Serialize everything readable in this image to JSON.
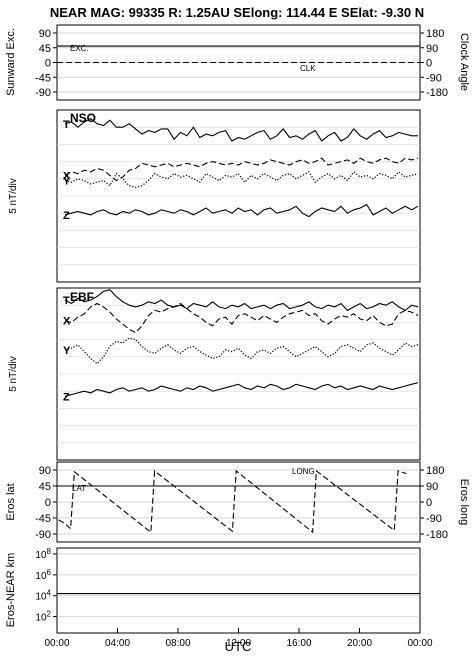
{
  "title": "NEAR MAG: 99335  R: 1.25AU  SElong:  114.44 E  SElat:   -9.30 N",
  "chart_data": [
    {
      "id": "p1",
      "type": "line",
      "ylabel": "Sunward Exc.",
      "ylabel_right": "Clock Angle",
      "ticks_left": [
        "90",
        "45",
        "0",
        "-45",
        "-90"
      ],
      "ticks_right": [
        "180",
        "90",
        "0",
        "-90",
        "-180"
      ],
      "ylim": [
        -90,
        90
      ],
      "grid": true,
      "series": [
        {
          "name": "EXC.",
          "style": "solid",
          "x": [
            0,
            24
          ],
          "y": [
            50,
            50
          ]
        },
        {
          "name": "CLK",
          "style": "dashed",
          "x": [
            0,
            24
          ],
          "y": [
            0,
            0
          ]
        }
      ]
    },
    {
      "id": "p2",
      "type": "line",
      "label": "NSO",
      "ylabel": "5 nT/div",
      "grid": true,
      "series": [
        {
          "name": "T",
          "style": "solid",
          "y": [
            9.2,
            9.3,
            9.0,
            9.3,
            9.5,
            9.2,
            9.1,
            9.4,
            9.0,
            9.0,
            9.2,
            8.9,
            8.6,
            8.8,
            8.7,
            8.9,
            8.9,
            8.3,
            8.7,
            8.5,
            9.0,
            8.4,
            8.6,
            8.5,
            8.7,
            8.8,
            8.2,
            8.4,
            8.3,
            8.5,
            8.7,
            8.8,
            8.3,
            8.5,
            8.9,
            8.4,
            8.5,
            8.3,
            8.6,
            8.8,
            8.2,
            8.5,
            8.7,
            8.2,
            8.4,
            8.9,
            8.5,
            8.3,
            8.6,
            8.8,
            8.4,
            8.5,
            8.7,
            8.6,
            8.5,
            8.5
          ]
        },
        {
          "name": "X",
          "style": "dashed",
          "y": [
            6.2,
            6.4,
            6.3,
            6.5,
            6.4,
            6.6,
            6.5,
            6.2,
            5.9,
            6.1,
            6.5,
            6.6,
            6.9,
            6.8,
            6.7,
            6.8,
            6.9,
            6.7,
            6.8,
            6.9,
            6.8,
            6.7,
            6.9,
            7.0,
            6.9,
            6.8,
            6.9,
            6.8,
            7.0,
            6.9,
            6.8,
            6.9,
            7.1,
            7.0,
            6.9,
            6.8,
            7.0,
            7.1,
            6.9,
            7.0,
            7.2,
            6.8,
            6.9,
            7.0,
            7.1,
            6.9,
            7.2,
            7.0,
            6.9,
            7.1,
            7.2,
            7.0,
            6.9,
            7.2,
            7.1,
            7.2
          ]
        },
        {
          "name": "Y",
          "style": "dotted",
          "y": [
            5.9,
            5.8,
            6.0,
            5.9,
            5.7,
            5.8,
            5.9,
            5.6,
            6.3,
            6.0,
            5.6,
            5.5,
            5.6,
            5.9,
            6.3,
            6.1,
            6.0,
            6.3,
            6.1,
            6.2,
            6.0,
            5.8,
            6.3,
            6.1,
            5.9,
            6.2,
            6.1,
            6.3,
            5.8,
            6.2,
            6.0,
            6.3,
            6.1,
            5.9,
            6.2,
            6.3,
            6.0,
            6.2,
            6.4,
            5.8,
            6.1,
            6.3,
            6.0,
            6.2,
            5.9,
            6.4,
            6.1,
            6.2,
            6.0,
            6.3,
            6.2,
            6.0,
            6.4,
            6.1,
            6.2,
            6.3
          ]
        },
        {
          "name": "Z",
          "style": "solid",
          "y": [
            3.9,
            4.0,
            4.1,
            4.0,
            3.9,
            4.1,
            4.2,
            4.0,
            3.9,
            4.1,
            4.0,
            4.2,
            4.1,
            3.9,
            4.0,
            4.2,
            4.1,
            4.0,
            4.2,
            4.1,
            3.9,
            4.1,
            4.3,
            4.0,
            4.1,
            4.2,
            4.0,
            4.3,
            4.1,
            4.2,
            3.9,
            4.2,
            4.3,
            4.0,
            4.1,
            4.2,
            4.4,
            4.0,
            3.8,
            4.1,
            4.3,
            4.2,
            4.1,
            4.4,
            4.0,
            4.2,
            4.3,
            4.5,
            3.9,
            4.1,
            4.3,
            4.0,
            4.2,
            4.4,
            4.2,
            4.4
          ]
        }
      ]
    },
    {
      "id": "p3",
      "type": "line",
      "label": "EBF",
      "ylabel": "5 nT/div",
      "grid": true,
      "series": [
        {
          "name": "T",
          "style": "solid",
          "y": [
            9.3,
            9.1,
            9.4,
            9.2,
            9.3,
            9.5,
            9.8,
            9.9,
            9.5,
            9.2,
            9.0,
            8.9,
            9.0,
            9.2,
            9.1,
            9.3,
            9.0,
            8.9,
            9.0,
            8.8,
            9.1,
            9.0,
            8.9,
            9.2,
            8.9,
            8.8,
            9.0,
            8.9,
            9.1,
            8.8,
            8.9,
            9.0,
            8.8,
            9.0,
            9.1,
            8.8,
            8.9,
            9.0,
            9.2,
            8.9,
            8.8,
            9.0,
            8.9,
            9.1,
            8.7,
            8.9,
            9.1,
            8.8,
            8.9,
            9.1,
            9.0,
            9.2,
            8.9,
            8.7,
            9.0,
            8.9
          ]
        },
        {
          "name": "X",
          "style": "dashed",
          "y": [
            8.1,
            8.0,
            8.3,
            8.5,
            8.9,
            9.1,
            8.9,
            8.6,
            8.2,
            7.9,
            7.6,
            7.4,
            7.8,
            8.4,
            8.7,
            8.6,
            8.8,
            8.9,
            9.1,
            8.8,
            8.5,
            8.3,
            8.0,
            7.8,
            8.2,
            8.3,
            7.9,
            8.4,
            8.5,
            8.3,
            8.1,
            8.4,
            8.2,
            8.0,
            8.3,
            8.5,
            8.6,
            8.7,
            8.4,
            8.5,
            8.1,
            7.9,
            8.2,
            8.4,
            8.3,
            8.5,
            8.2,
            8.1,
            8.4,
            8.0,
            7.8,
            7.9,
            8.5,
            8.7,
            8.6,
            8.4
          ]
        },
        {
          "name": "Y",
          "style": "dotted",
          "y": [
            6.4,
            6.5,
            6.7,
            6.3,
            5.9,
            5.6,
            6.0,
            6.6,
            6.9,
            6.8,
            7.1,
            7.0,
            6.6,
            6.3,
            6.2,
            6.5,
            6.7,
            6.4,
            6.2,
            6.5,
            6.6,
            6.3,
            6.1,
            5.9,
            6.0,
            6.4,
            6.3,
            6.5,
            6.1,
            5.9,
            6.3,
            6.4,
            6.2,
            6.5,
            6.6,
            6.3,
            6.0,
            6.2,
            6.4,
            6.6,
            6.3,
            6.0,
            6.2,
            6.6,
            6.7,
            6.5,
            6.3,
            6.7,
            6.8,
            6.5,
            6.3,
            6.1,
            6.4,
            6.8,
            6.6,
            6.7
          ]
        },
        {
          "name": "Z",
          "style": "solid",
          "y": [
            3.7,
            3.8,
            3.9,
            4.0,
            3.9,
            4.1,
            4.0,
            3.9,
            4.1,
            4.2,
            4.0,
            4.1,
            4.2,
            4.0,
            4.1,
            4.3,
            4.2,
            4.1,
            4.0,
            4.2,
            4.1,
            4.3,
            4.2,
            4.0,
            4.1,
            4.2,
            4.3,
            4.4,
            4.2,
            4.1,
            4.3,
            4.2,
            4.4,
            4.3,
            4.1,
            4.2,
            4.4,
            4.3,
            4.2,
            4.1,
            4.3,
            4.4,
            4.2,
            4.3,
            4.1,
            4.2,
            4.3,
            4.2,
            4.1,
            4.3,
            4.2,
            4.1,
            4.2,
            4.3,
            4.4,
            4.5
          ]
        }
      ]
    },
    {
      "id": "p4",
      "type": "line",
      "ylabel": "Eros lat",
      "ylabel_right": "Eros long",
      "ticks_left": [
        "90",
        "45",
        "0",
        "-45",
        "-90"
      ],
      "ticks_right": [
        "180",
        "90",
        "0",
        "-90",
        "-180"
      ],
      "ylim": [
        -90,
        90
      ],
      "grid": true,
      "series": [
        {
          "name": "LAT",
          "style": "solid",
          "x": [
            0,
            24
          ],
          "y": [
            45,
            45
          ]
        },
        {
          "name": "LONG",
          "style": "dashed",
          "x": [
            0.1,
            0.5,
            0.9,
            1.15,
            6.2,
            6.45,
            11.6,
            11.85,
            16.9,
            17.15,
            22.3,
            22.55,
            23.1
          ],
          "y": [
            -100,
            -120,
            -150,
            170,
            -170,
            175,
            -165,
            175,
            -170,
            175,
            -160,
            175,
            160
          ]
        }
      ]
    },
    {
      "id": "p5",
      "type": "line",
      "ylabel": "Eros-NEAR km",
      "ticks_left": [
        "10^8",
        "10^6",
        "10^4",
        "10^2"
      ],
      "ylim": [
        1,
        8
      ],
      "log_scale": true,
      "grid": true,
      "series": [
        {
          "name": "",
          "style": "solid",
          "x": [
            0,
            24
          ],
          "y": [
            4.2,
            4.2
          ]
        }
      ]
    }
  ],
  "x_axis": {
    "ticks": [
      "00:00",
      "04:00",
      "08:00",
      "12:00",
      "16:00",
      "20:00",
      "00:00"
    ],
    "label": "UTC"
  }
}
